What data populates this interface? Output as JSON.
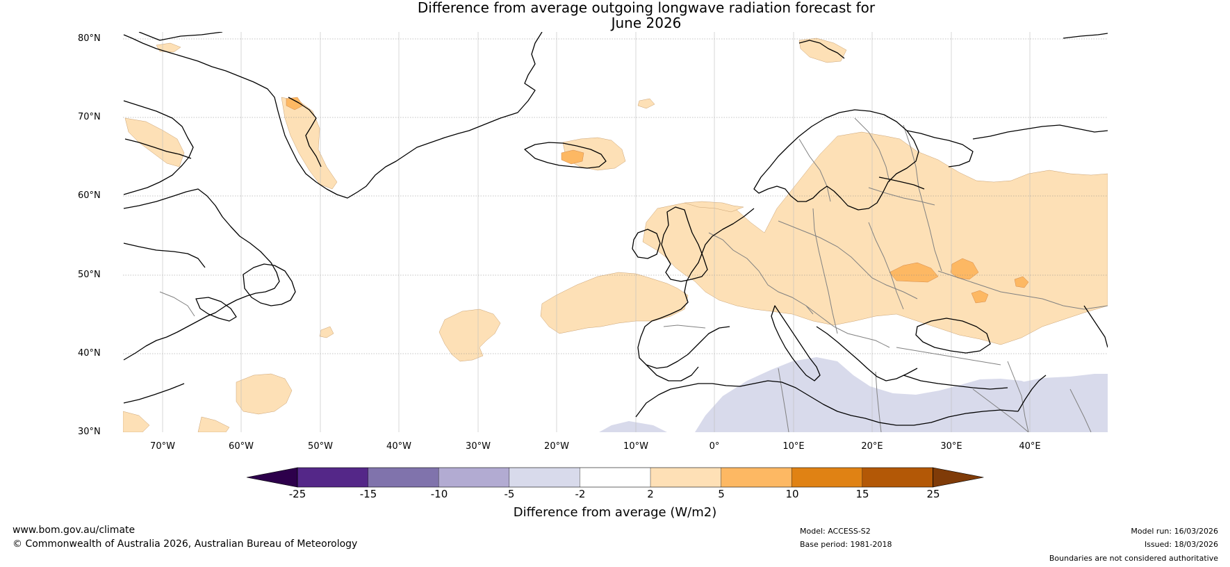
{
  "title": {
    "line1": "Difference from average outgoing longwave radiation forecast for",
    "line2": "June 2026"
  },
  "map": {
    "latitudes": [
      "80°N",
      "70°N",
      "60°N",
      "50°N",
      "40°N",
      "30°N"
    ],
    "longitudes": [
      "70°W",
      "60°W",
      "50°W",
      "40°W",
      "30°W",
      "20°W",
      "10°W",
      "0°",
      "10°E",
      "20°E",
      "30°E",
      "40°E"
    ],
    "extent": {
      "lon_min": -75,
      "lon_max": 50,
      "lat_min": 30,
      "lat_max": 81
    }
  },
  "legend": {
    "label": "Difference from average (W/m2)",
    "ticks": [
      "-25",
      "-15",
      "-10",
      "-5",
      "-2",
      "2",
      "5",
      "10",
      "15",
      "25"
    ],
    "colors": [
      "#2d004b",
      "#542788",
      "#8073ac",
      "#b2abd2",
      "#d8daeb",
      "#ffffff",
      "#fee0b6",
      "#fdb863",
      "#e08214",
      "#b35806",
      "#7f3b08"
    ]
  },
  "footer": {
    "website": "www.bom.gov.au/climate",
    "copyright": "© Commonwealth of Australia 2026, Australian Bureau of Meteorology",
    "model": "Model: ACCESS-S2",
    "base_period": "Base period: 1981-2018",
    "model_run": "Model run: 16/03/2026",
    "issued": "Issued: 18/03/2026",
    "disclaimer": "Boundaries are not considered authoritative"
  }
}
